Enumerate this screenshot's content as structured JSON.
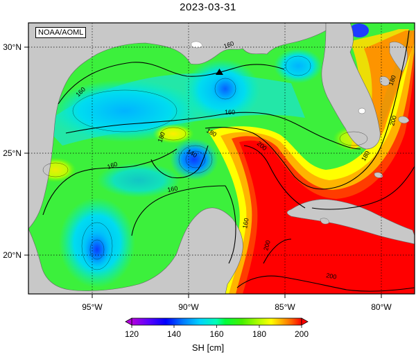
{
  "title": "2023-03-31",
  "watermark": "NOAA/AOML",
  "map": {
    "lon_labels": [
      "95°W",
      "90°W",
      "85°W",
      "80°W"
    ],
    "lat_labels": [
      "30°N",
      "25°N",
      "20°N"
    ],
    "contour_labels": [
      "160",
      "160",
      "160",
      "160",
      "160",
      "160",
      "180",
      "180",
      "180",
      "180",
      "140",
      "200",
      "200",
      "200",
      "200"
    ],
    "marker": "triangle"
  },
  "colorbar": {
    "label": "SH [cm]",
    "ticks": [
      "120",
      "140",
      "160",
      "180",
      "200"
    ],
    "range": [
      120,
      200
    ],
    "colors": [
      "#b400dc",
      "#5a00ff",
      "#0000ff",
      "#0078ff",
      "#00d2ff",
      "#00ffb4",
      "#00ff3c",
      "#46f000",
      "#b4ff00",
      "#ffff00",
      "#ffb400",
      "#ff6400",
      "#ff0000"
    ]
  }
}
